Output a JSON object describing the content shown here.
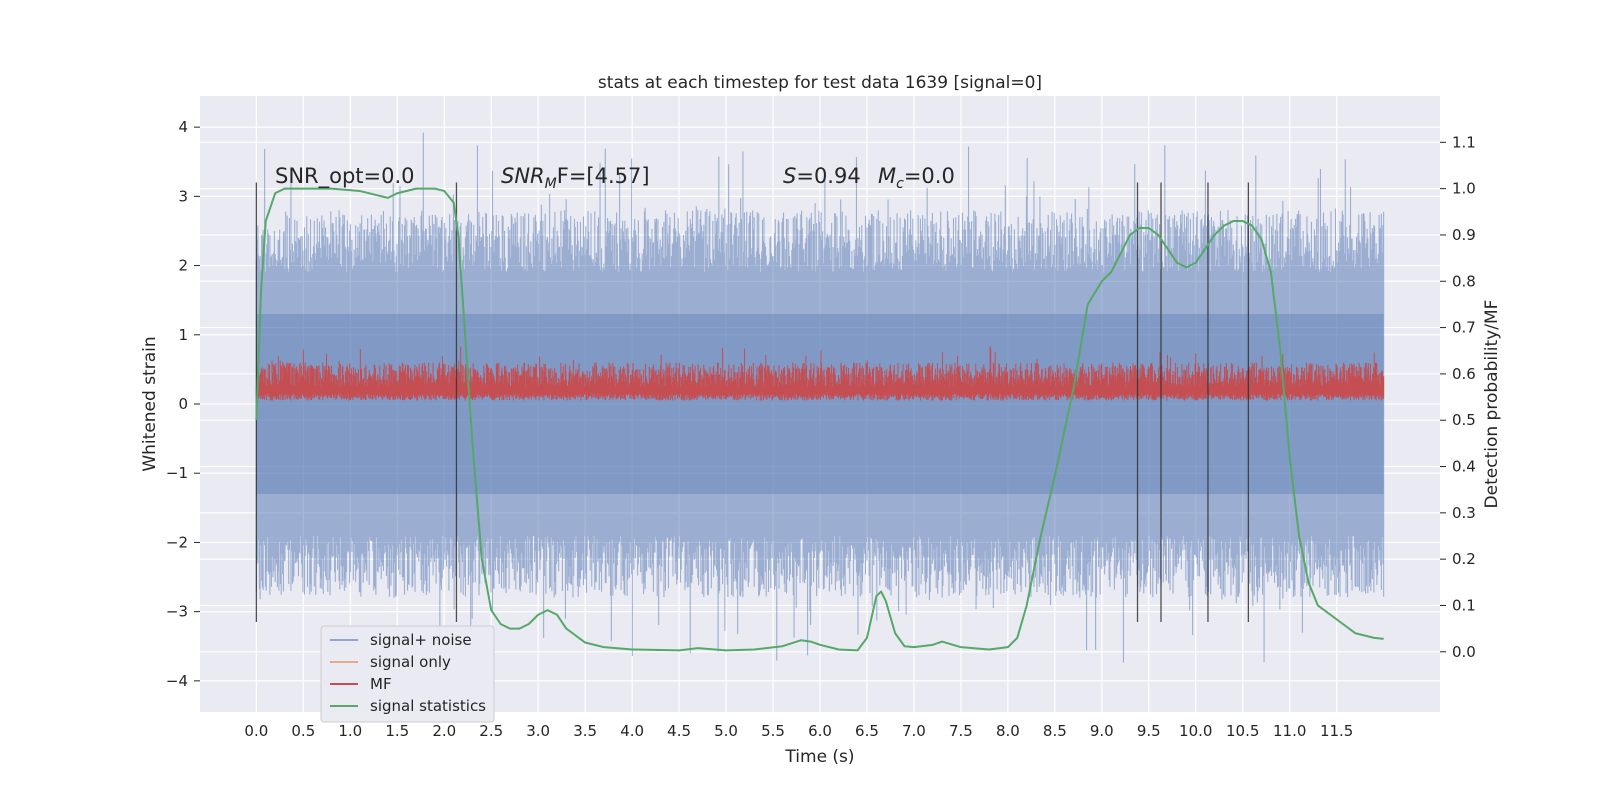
{
  "chart_data": {
    "type": "line",
    "title": "stats at each timestep for test data 1639 [signal=0]",
    "xlabel": "Time (s)",
    "ylabel": "Whitened strain",
    "y2label": "Detection probability/MF",
    "xlim": [
      -0.6,
      12.6
    ],
    "ylim": [
      -4.45,
      4.45
    ],
    "y2lim": [
      -0.13,
      1.2
    ],
    "grid": true,
    "legend_position": "lower-left",
    "xticks": [
      "0.0",
      "0.5",
      "1.0",
      "1.5",
      "2.0",
      "2.5",
      "3.0",
      "3.5",
      "4.0",
      "4.5",
      "5.0",
      "5.5",
      "6.0",
      "6.5",
      "7.0",
      "7.5",
      "8.0",
      "8.5",
      "9.0",
      "9.5",
      "10.0",
      "10.5",
      "11.0",
      "11.5"
    ],
    "yticks": [
      "−4",
      "−3",
      "−2",
      "−1",
      "0",
      "1",
      "2",
      "3",
      "4"
    ],
    "y2ticks": [
      "0.0",
      "0.1",
      "0.2",
      "0.3",
      "0.4",
      "0.5",
      "0.6",
      "0.7",
      "0.8",
      "0.9",
      "1.0",
      "1.1"
    ],
    "annotations": {
      "snr_opt": "SNR_opt=0.0",
      "snr_mf_base": "SNR",
      "snr_mf_sub": "M",
      "snr_mf_rest": "F=[4.57]",
      "s_base": "S",
      "s_rest": "=0.94",
      "mc_base": "M",
      "mc_sub": "c",
      "mc_rest": "=0.0"
    },
    "series": [
      {
        "name": "signal+ noise",
        "color": "#4c72b0",
        "axis": "left",
        "noise_band": [
          -1.9,
          1.9
        ],
        "x_range": [
          0.0,
          12.0
        ]
      },
      {
        "name": "signal only",
        "color": "#dd8452",
        "axis": "left",
        "values": "zero"
      },
      {
        "name": "MF",
        "color": "#c44e52",
        "axis": "left",
        "band": [
          0.05,
          0.6
        ],
        "x_range": [
          0.0,
          12.0
        ]
      },
      {
        "name": "signal statistics",
        "color": "#55a868",
        "axis": "right",
        "x": [
          0.0,
          0.05,
          0.1,
          0.2,
          0.3,
          0.5,
          0.8,
          1.1,
          1.3,
          1.4,
          1.5,
          1.7,
          1.9,
          2.0,
          2.1,
          2.15,
          2.2,
          2.3,
          2.4,
          2.5,
          2.6,
          2.7,
          2.8,
          2.9,
          3.0,
          3.1,
          3.2,
          3.3,
          3.5,
          3.7,
          4.0,
          4.5,
          4.7,
          5.0,
          5.3,
          5.6,
          5.8,
          5.9,
          6.0,
          6.2,
          6.4,
          6.5,
          6.6,
          6.65,
          6.7,
          6.8,
          6.9,
          7.0,
          7.2,
          7.3,
          7.5,
          7.8,
          8.0,
          8.1,
          8.2,
          8.35,
          8.5,
          8.7,
          8.85,
          9.0,
          9.1,
          9.2,
          9.3,
          9.4,
          9.5,
          9.6,
          9.7,
          9.8,
          9.9,
          10.0,
          10.1,
          10.2,
          10.3,
          10.4,
          10.5,
          10.6,
          10.7,
          10.8,
          10.9,
          11.0,
          11.1,
          11.2,
          11.3,
          11.5,
          11.7,
          11.9,
          12.0
        ],
        "y": [
          0.5,
          0.78,
          0.93,
          0.99,
          1.0,
          1.0,
          1.0,
          0.995,
          0.985,
          0.98,
          0.99,
          1.0,
          1.0,
          0.995,
          0.97,
          0.9,
          0.75,
          0.45,
          0.2,
          0.09,
          0.06,
          0.05,
          0.05,
          0.06,
          0.08,
          0.09,
          0.08,
          0.05,
          0.02,
          0.01,
          0.005,
          0.003,
          0.008,
          0.003,
          0.005,
          0.012,
          0.025,
          0.022,
          0.015,
          0.005,
          0.003,
          0.03,
          0.12,
          0.13,
          0.11,
          0.04,
          0.012,
          0.01,
          0.015,
          0.022,
          0.01,
          0.005,
          0.01,
          0.03,
          0.1,
          0.25,
          0.38,
          0.57,
          0.75,
          0.8,
          0.82,
          0.86,
          0.9,
          0.915,
          0.915,
          0.9,
          0.87,
          0.84,
          0.83,
          0.84,
          0.87,
          0.9,
          0.92,
          0.93,
          0.93,
          0.92,
          0.89,
          0.82,
          0.65,
          0.42,
          0.25,
          0.15,
          0.1,
          0.07,
          0.04,
          0.03,
          0.028
        ]
      }
    ],
    "vertical_lines": [
      0.0,
      2.13,
      9.38,
      9.63,
      10.13,
      10.56
    ]
  }
}
